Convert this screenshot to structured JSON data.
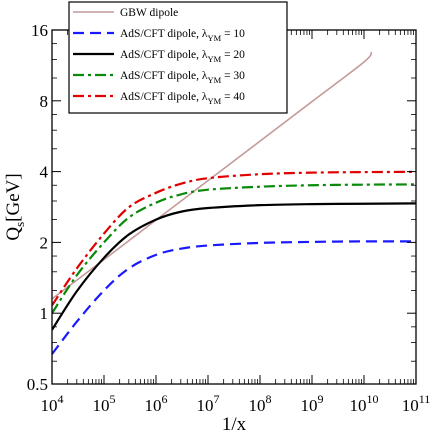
{
  "chart_data": {
    "type": "line",
    "xlabel": "1/x",
    "ylabel": "Qs [GeV]",
    "ylabel_main": "Q",
    "ylabel_sub": "s",
    "ylabel_unit": "[GeV]",
    "xscale": "log",
    "yscale": "log",
    "xlim": [
      10000,
      100000000000
    ],
    "ylim": [
      0.5,
      16
    ],
    "x_ticks": [
      {
        "value": 10000,
        "base": "10",
        "exp": "4"
      },
      {
        "value": 100000,
        "base": "10",
        "exp": "5"
      },
      {
        "value": 1000000,
        "base": "10",
        "exp": "6"
      },
      {
        "value": 10000000,
        "base": "10",
        "exp": "7"
      },
      {
        "value": 100000000,
        "base": "10",
        "exp": "8"
      },
      {
        "value": 1000000000,
        "base": "10",
        "exp": "9"
      },
      {
        "value": 10000000000,
        "base": "10",
        "exp": "10"
      },
      {
        "value": 100000000000,
        "base": "10",
        "exp": "11"
      }
    ],
    "y_ticks": [
      {
        "value": 0.5,
        "label": "0.5"
      },
      {
        "value": 1,
        "label": "1"
      },
      {
        "value": 2,
        "label": "2"
      },
      {
        "value": 4,
        "label": "4"
      },
      {
        "value": 8,
        "label": "8"
      },
      {
        "value": 16,
        "label": "16"
      }
    ],
    "legend_position": "top-left",
    "series": [
      {
        "name": "GBW dipole",
        "color": "#c49a9a",
        "dash": "solid",
        "width": 1.6,
        "x": [
          10000,
          100000,
          1000000,
          10000000,
          100000000,
          1000000000,
          10000000000,
          14000000000
        ],
        "y": [
          1.15,
          1.69,
          2.49,
          3.66,
          5.39,
          7.94,
          11.7,
          12.9
        ]
      },
      {
        "name": "AdS/CFT dipole, λYM = 10",
        "legend_prefix": "AdS/CFT dipole, λ",
        "legend_sub": "YM",
        "legend_suffix": " = 10",
        "color": "#1a1aff",
        "dash": "dashed",
        "width": 2.2,
        "x": [
          10000,
          30000,
          100000,
          300000,
          1000000,
          3000000,
          10000000,
          100000000,
          1000000000,
          10000000000,
          100000000000
        ],
        "y": [
          0.67,
          0.92,
          1.25,
          1.55,
          1.77,
          1.88,
          1.94,
          1.99,
          2.01,
          2.02,
          2.02
        ]
      },
      {
        "name": "AdS/CFT dipole, λYM = 20",
        "legend_prefix": "AdS/CFT dipole, λ",
        "legend_sub": "YM",
        "legend_suffix": " = 20",
        "color": "#000000",
        "dash": "solid",
        "width": 2.2,
        "x": [
          10000,
          30000,
          100000,
          300000,
          1000000,
          3000000,
          10000000,
          100000000,
          1000000000,
          10000000000,
          100000000000
        ],
        "y": [
          0.85,
          1.24,
          1.72,
          2.16,
          2.5,
          2.7,
          2.8,
          2.88,
          2.91,
          2.92,
          2.93
        ]
      },
      {
        "name": "AdS/CFT dipole, λYM = 30",
        "legend_prefix": "AdS/CFT dipole, λ",
        "legend_sub": "YM",
        "legend_suffix": " = 30",
        "color": "#0a8a0a",
        "dash": "dashdot",
        "width": 2.2,
        "x": [
          10000,
          30000,
          100000,
          300000,
          1000000,
          3000000,
          10000000,
          100000000,
          1000000000,
          10000000000,
          100000000000
        ],
        "y": [
          1.0,
          1.45,
          2.0,
          2.55,
          2.95,
          3.2,
          3.35,
          3.45,
          3.5,
          3.52,
          3.53
        ]
      },
      {
        "name": "AdS/CFT dipole, λYM = 40",
        "legend_prefix": "AdS/CFT dipole, λ",
        "legend_sub": "YM",
        "legend_suffix": " = 40",
        "color": "#e00000",
        "dash": "dashdot",
        "width": 2.2,
        "x": [
          10000,
          30000,
          100000,
          300000,
          1000000,
          3000000,
          10000000,
          100000000,
          1000000000,
          10000000000,
          100000000000
        ],
        "y": [
          1.08,
          1.55,
          2.18,
          2.82,
          3.25,
          3.55,
          3.75,
          3.9,
          3.96,
          3.98,
          3.99
        ]
      }
    ]
  }
}
